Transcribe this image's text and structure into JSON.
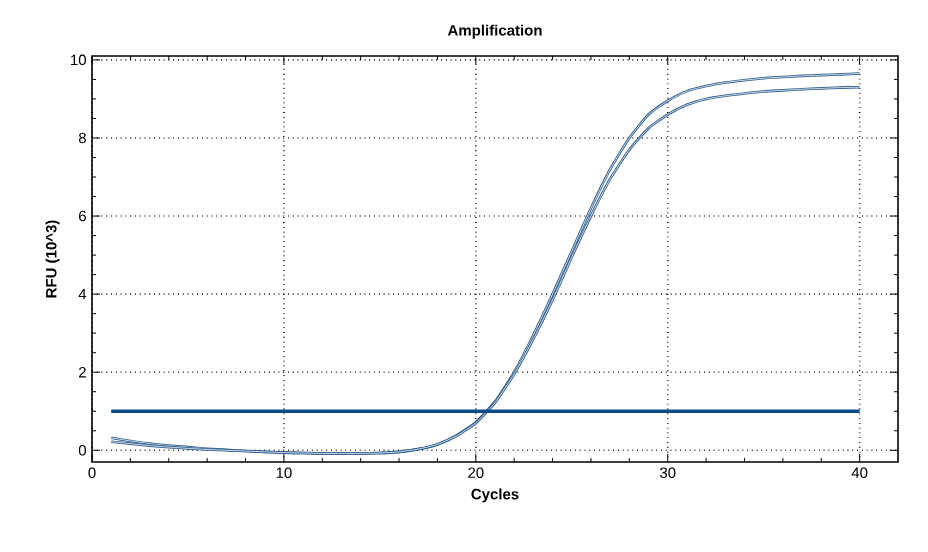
{
  "chart_data": {
    "type": "line",
    "title": "Amplification",
    "xlabel": "Cycles",
    "ylabel": "RFU (10^3)",
    "x": [
      1,
      2,
      3,
      4,
      5,
      6,
      7,
      8,
      9,
      10,
      11,
      12,
      13,
      14,
      15,
      16,
      17,
      18,
      19,
      20,
      21,
      22,
      23,
      24,
      25,
      26,
      27,
      28,
      29,
      30,
      31,
      32,
      33,
      34,
      35,
      36,
      37,
      38,
      39,
      40
    ],
    "series": [
      {
        "color": "#2b5b8c",
        "values": [
          0.32,
          0.24,
          0.17,
          0.12,
          0.08,
          0.04,
          0.01,
          -0.02,
          -0.04,
          -0.06,
          -0.07,
          -0.08,
          -0.08,
          -0.08,
          -0.07,
          -0.04,
          0.03,
          0.15,
          0.38,
          0.72,
          1.25,
          2.0,
          2.95,
          4.0,
          5.1,
          6.2,
          7.2,
          8.0,
          8.6,
          8.95,
          9.2,
          9.33,
          9.42,
          9.48,
          9.53,
          9.56,
          9.59,
          9.61,
          9.63,
          9.65
        ]
      },
      {
        "color": "#2b5b8c",
        "values": [
          0.22,
          0.17,
          0.12,
          0.08,
          0.05,
          0.02,
          0.0,
          -0.02,
          -0.04,
          -0.06,
          -0.07,
          -0.08,
          -0.08,
          -0.08,
          -0.07,
          -0.04,
          0.03,
          0.15,
          0.37,
          0.7,
          1.22,
          1.95,
          2.85,
          3.85,
          4.95,
          6.0,
          6.95,
          7.7,
          8.25,
          8.6,
          8.85,
          9.0,
          9.08,
          9.14,
          9.19,
          9.22,
          9.25,
          9.27,
          9.29,
          9.3
        ]
      }
    ],
    "ref_lines": [
      {
        "axis": "y",
        "value": 1,
        "color": "#0b4a85"
      }
    ],
    "xlim": [
      0,
      42
    ],
    "ylim": [
      -0.3,
      10.1
    ],
    "xticks": [
      0,
      10,
      20,
      30,
      40
    ],
    "yticks": [
      0,
      2,
      4,
      6,
      8,
      10
    ],
    "grid": true,
    "marker": "none",
    "line_style": "solid"
  }
}
